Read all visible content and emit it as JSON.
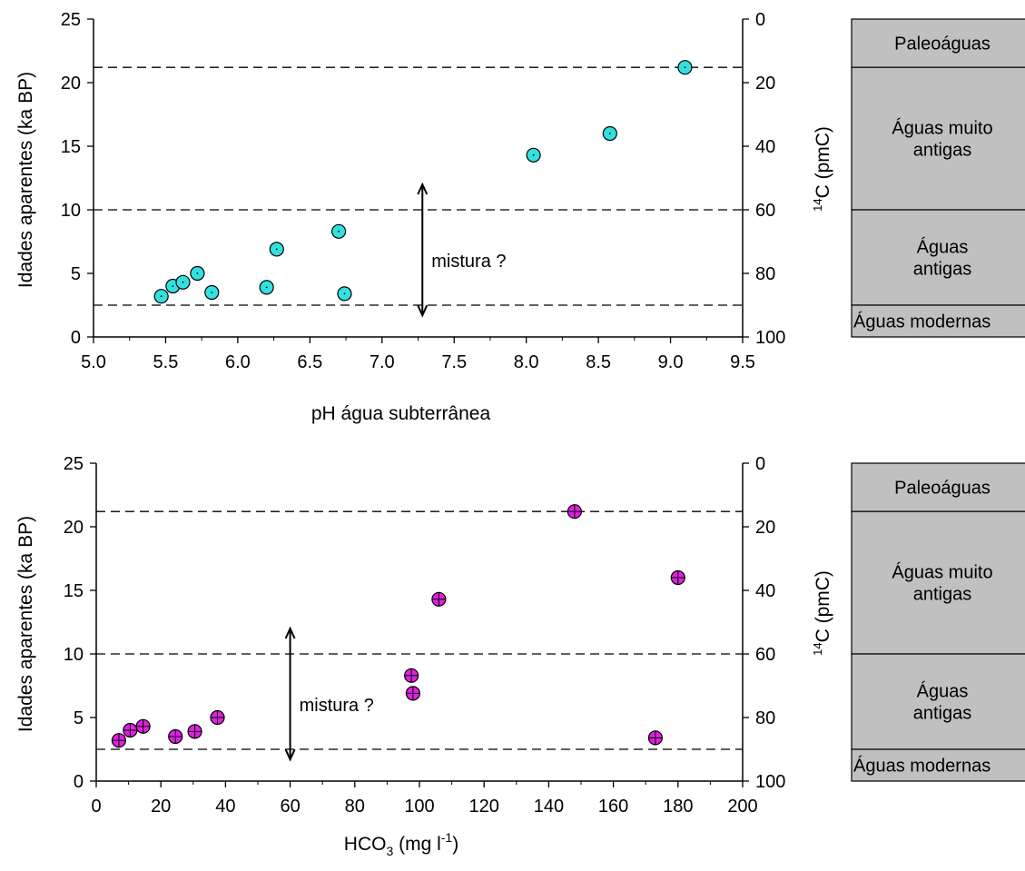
{
  "chart_data": [
    {
      "type": "scatter",
      "xlabel": "pH água subterrânea",
      "ylabel": "Idades aparentes (ka BP)",
      "y2label": {
        "pre": "14",
        "main": "C (pmC)"
      },
      "xlim": [
        5.0,
        9.5
      ],
      "ylim": [
        0,
        25
      ],
      "y2lim": [
        0,
        100
      ],
      "xticks": [
        "5.0",
        "5.5",
        "6.0",
        "6.5",
        "7.0",
        "7.5",
        "8.0",
        "8.5",
        "9.0",
        "9.5"
      ],
      "yticks": [
        "0",
        "5",
        "10",
        "15",
        "20",
        "25"
      ],
      "y2ticks": [
        "0",
        "20",
        "40",
        "60",
        "80",
        "100"
      ],
      "hlines": [
        21.2,
        10.0,
        2.5
      ],
      "annotation": {
        "text": "mistura ?",
        "x": 7.28,
        "y_from": 1.7,
        "y_to": 12.0
      },
      "marker_color": "#33e0e0",
      "points": [
        {
          "x": 5.47,
          "y": 3.2
        },
        {
          "x": 5.55,
          "y": 4.0
        },
        {
          "x": 5.62,
          "y": 4.3
        },
        {
          "x": 5.72,
          "y": 5.0
        },
        {
          "x": 5.82,
          "y": 3.5
        },
        {
          "x": 6.2,
          "y": 3.9
        },
        {
          "x": 6.27,
          "y": 6.9
        },
        {
          "x": 6.7,
          "y": 8.3
        },
        {
          "x": 6.74,
          "y": 3.4
        },
        {
          "x": 8.05,
          "y": 14.3
        },
        {
          "x": 8.58,
          "y": 16.0
        },
        {
          "x": 9.1,
          "y": 21.2
        }
      ]
    },
    {
      "type": "scatter",
      "xlabel": {
        "main": "HCO",
        "sub": "3",
        "post": " (mg l",
        "sup": "-1",
        "end": ")"
      },
      "ylabel": "Idades aparentes (ka BP)",
      "y2label": {
        "pre": "14",
        "main": "C (pmC)"
      },
      "xlim": [
        0,
        200
      ],
      "ylim": [
        0,
        25
      ],
      "y2lim": [
        0,
        100
      ],
      "xticks": [
        "0",
        "20",
        "40",
        "60",
        "80",
        "100",
        "120",
        "140",
        "160",
        "180",
        "200"
      ],
      "yticks": [
        "0",
        "5",
        "10",
        "15",
        "20",
        "25"
      ],
      "y2ticks": [
        "0",
        "20",
        "40",
        "60",
        "80",
        "100"
      ],
      "hlines": [
        21.2,
        10.0,
        2.5
      ],
      "annotation": {
        "text": "mistura ?",
        "x": 60,
        "y_from": 1.7,
        "y_to": 12.0
      },
      "marker_color": "#e020e0",
      "points": [
        {
          "x": 7.0,
          "y": 3.2
        },
        {
          "x": 10.5,
          "y": 4.0
        },
        {
          "x": 14.5,
          "y": 4.3
        },
        {
          "x": 24.5,
          "y": 3.5
        },
        {
          "x": 30.5,
          "y": 3.9
        },
        {
          "x": 37.5,
          "y": 5.0
        },
        {
          "x": 97.5,
          "y": 8.3
        },
        {
          "x": 98.0,
          "y": 6.9
        },
        {
          "x": 106.0,
          "y": 14.3
        },
        {
          "x": 148.0,
          "y": 21.2
        },
        {
          "x": 173.0,
          "y": 3.4
        },
        {
          "x": 180.0,
          "y": 16.0
        }
      ]
    }
  ],
  "legend_zones": {
    "fill": "#c0c0c0",
    "items": [
      {
        "label": "Paleoáguas",
        "y_top": 25,
        "y_bottom": 21.2
      },
      {
        "label_lines": [
          "Águas muito",
          "antigas"
        ],
        "y_top": 21.2,
        "y_bottom": 10.0
      },
      {
        "label_lines": [
          "Águas",
          "antigas"
        ],
        "y_top": 10.0,
        "y_bottom": 2.5
      },
      {
        "label": "Águas modernas",
        "y_top": 2.5,
        "y_bottom": 0
      }
    ]
  }
}
